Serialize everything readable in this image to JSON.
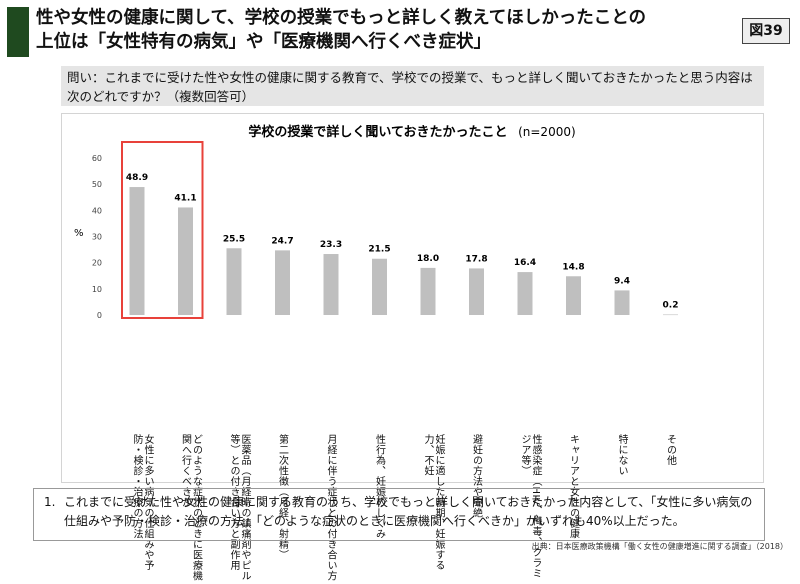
{
  "header": {
    "title_line1": "性や女性の健康に関して、学校の授業でもっと詳しく教えてほしかったことの",
    "title_line2": "上位は「女性特有の病気」や「医療機関へ行くべき症状」",
    "figure_label": "図39"
  },
  "question": "問い：これまでに受けた性や女性の健康に関する教育で、学校での授業で、もっと詳しく聞いておきたかったと思う内容は次のどれですか？（複数回答可）",
  "chart_data": {
    "type": "bar",
    "title": "学校の授業で詳しく聞いておきたかったこと",
    "subtitle": "(n=2000)",
    "ylabel": "%",
    "xlabel": "",
    "ylim": [
      0,
      60
    ],
    "yticks": [
      0,
      10,
      20,
      30,
      40,
      50,
      60
    ],
    "grid": false,
    "categories": [
      "女性に多い病気の仕組みや予防・検診・治療の方法",
      "どのような症状のときに医療機関へ行くべきか",
      "医薬品（月経時の鎮痛剤やピル等）との付き合い方と副作用",
      "第二次性徴（月経、射精）",
      "月経に伴う症状との付き合い方",
      "性行為、妊娠のしくみ",
      "妊娠に適した時期、妊娠する力、不妊",
      "避妊の方法や中絶",
      "性感染症（HIV、梅毒、クラミジア等）",
      "キャリアと女性の健康",
      "特にない",
      "その他"
    ],
    "values": [
      48.9,
      41.1,
      25.5,
      24.7,
      23.3,
      21.5,
      18.0,
      17.8,
      16.4,
      14.8,
      9.4,
      0.2
    ],
    "value_labels": [
      "48.9",
      "41.1",
      "25.5",
      "24.7",
      "23.3",
      "21.5",
      "18.0",
      "17.8",
      "16.4",
      "14.8",
      "9.4",
      "0.2"
    ],
    "highlight_count": 2,
    "bar_color": "#bfbfbf",
    "highlight_color": "#e8413a"
  },
  "note": {
    "number": "1.",
    "text": "これまでに受けた性や女性の健康に関する教育のうち、学校でもっと詳しく聞いておきたかった内容として、「女性に多い病気の仕組みや予防・検診・治療の方法」「どのような症状のときに医療機関へ行くべきか」がいずれも40%以上だった。"
  },
  "source": "出典：日本医療政策機構「働く女性の健康増進に関する調査」（2018）"
}
